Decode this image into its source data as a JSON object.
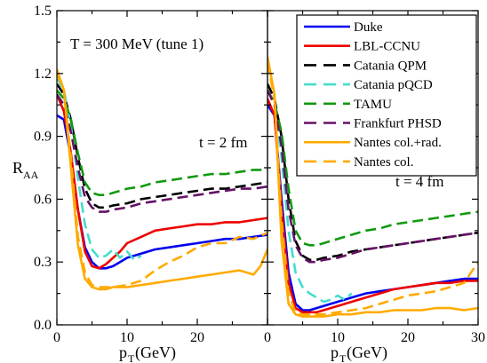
{
  "chart_data": [
    {
      "type": "line",
      "panel": "left",
      "annotations": [
        "T = 300 MeV   (tune 1)",
        "t = 2 fm"
      ],
      "ylabel_main": "R",
      "ylabel_sub": "AA",
      "xlabel_main": "p",
      "xlabel_sub": "T",
      "xlabel_unit": " (GeV)",
      "xlim": [
        0,
        30
      ],
      "ylim": [
        0.0,
        1.5
      ],
      "x_ticks": [
        "0",
        "10",
        "20"
      ],
      "y_ticks": [
        "0.0",
        "0.3",
        "0.6",
        "0.9",
        "1.2",
        "1.5"
      ],
      "series": [
        {
          "name": "Duke",
          "color": "#0000ee",
          "dash": "solid",
          "x": [
            0,
            1,
            2,
            3,
            4,
            5,
            6,
            7,
            8,
            9,
            10,
            12,
            14,
            16,
            18,
            20,
            22,
            24,
            26,
            28,
            30
          ],
          "y": [
            1.0,
            0.98,
            0.8,
            0.55,
            0.37,
            0.3,
            0.27,
            0.27,
            0.28,
            0.3,
            0.32,
            0.34,
            0.36,
            0.37,
            0.38,
            0.39,
            0.4,
            0.41,
            0.41,
            0.42,
            0.43
          ]
        },
        {
          "name": "LBL-CCNU",
          "color": "#ee0000",
          "dash": "solid",
          "x": [
            0,
            1,
            2,
            3,
            4,
            5,
            6,
            7,
            8,
            9,
            10,
            12,
            14,
            16,
            18,
            20,
            22,
            24,
            26,
            28,
            30
          ],
          "y": [
            1.1,
            1.02,
            0.82,
            0.55,
            0.35,
            0.28,
            0.27,
            0.29,
            0.32,
            0.35,
            0.39,
            0.42,
            0.45,
            0.46,
            0.47,
            0.48,
            0.48,
            0.49,
            0.49,
            0.5,
            0.51
          ]
        },
        {
          "name": "Catania QPM",
          "color": "#000000",
          "dash": "12,6",
          "x": [
            0,
            1,
            2,
            3,
            4,
            5,
            6,
            7,
            8,
            10,
            12,
            14,
            16,
            18,
            20,
            22,
            24,
            26,
            28,
            30
          ],
          "y": [
            1.15,
            1.1,
            0.98,
            0.8,
            0.65,
            0.58,
            0.56,
            0.56,
            0.57,
            0.58,
            0.6,
            0.61,
            0.62,
            0.63,
            0.64,
            0.65,
            0.65,
            0.66,
            0.67,
            0.68
          ]
        },
        {
          "name": "Catania pQCD",
          "color": "#44ddcc",
          "dash": "12,6",
          "x": [
            0,
            1,
            2,
            3,
            4,
            5,
            6,
            7,
            8,
            9,
            10,
            11,
            12
          ],
          "y": [
            1.18,
            1.12,
            0.95,
            0.7,
            0.48,
            0.36,
            0.32,
            0.33,
            0.36,
            0.32,
            0.35,
            0.31,
            0.33
          ]
        },
        {
          "name": "TAMU",
          "color": "#119911",
          "dash": "12,6",
          "x": [
            0,
            1,
            2,
            3,
            4,
            5,
            6,
            7,
            8,
            10,
            12,
            14,
            16,
            18,
            20,
            22,
            24,
            26,
            28,
            30
          ],
          "y": [
            1.12,
            1.08,
            0.98,
            0.82,
            0.68,
            0.63,
            0.62,
            0.62,
            0.63,
            0.65,
            0.66,
            0.68,
            0.69,
            0.7,
            0.71,
            0.72,
            0.72,
            0.73,
            0.74,
            0.74
          ]
        },
        {
          "name": "Frankfurt PHSD",
          "color": "#661166",
          "dash": "12,6",
          "x": [
            0,
            1,
            2,
            3,
            4,
            5,
            6,
            7,
            8,
            10,
            12,
            14,
            16,
            18,
            20,
            22,
            24,
            26,
            28,
            30
          ],
          "y": [
            1.1,
            1.05,
            0.92,
            0.75,
            0.61,
            0.56,
            0.54,
            0.54,
            0.55,
            0.56,
            0.58,
            0.59,
            0.6,
            0.61,
            0.62,
            0.63,
            0.64,
            0.65,
            0.65,
            0.66
          ]
        },
        {
          "name": "Nantes col.+rad.",
          "color": "#ffaa00",
          "dash": "solid",
          "x": [
            0,
            1,
            2,
            3,
            4,
            5,
            6,
            7,
            8,
            10,
            12,
            14,
            16,
            18,
            20,
            22,
            24,
            26,
            28,
            29,
            30
          ],
          "y": [
            1.22,
            1.12,
            0.75,
            0.38,
            0.22,
            0.18,
            0.17,
            0.17,
            0.18,
            0.18,
            0.19,
            0.2,
            0.21,
            0.22,
            0.23,
            0.24,
            0.25,
            0.26,
            0.24,
            0.28,
            0.36
          ]
        },
        {
          "name": "Nantes col.",
          "color": "#ffaa00",
          "dash": "12,6",
          "x": [
            0,
            1,
            2,
            3,
            4,
            5,
            6,
            7,
            8,
            10,
            12,
            14,
            16,
            18,
            20,
            22,
            24,
            26,
            28,
            30
          ],
          "y": [
            1.2,
            1.12,
            0.8,
            0.42,
            0.25,
            0.19,
            0.18,
            0.18,
            0.18,
            0.19,
            0.21,
            0.26,
            0.3,
            0.33,
            0.37,
            0.39,
            0.39,
            0.42,
            0.41,
            0.44
          ]
        }
      ]
    },
    {
      "type": "line",
      "panel": "right",
      "annotations": [
        "t = 4 fm"
      ],
      "xlabel_main": "p",
      "xlabel_sub": "T",
      "xlabel_unit": " (GeV)",
      "xlim": [
        0,
        30
      ],
      "ylim": [
        0.0,
        1.5
      ],
      "x_ticks": [
        "0",
        "10",
        "20",
        "30"
      ],
      "legend_position": "top-right",
      "series": [
        {
          "name": "Duke",
          "color": "#0000ee",
          "dash": "solid",
          "x": [
            0,
            1,
            2,
            3,
            4,
            5,
            6,
            7,
            8,
            10,
            12,
            14,
            16,
            18,
            20,
            22,
            24,
            26,
            28,
            30
          ],
          "y": [
            1.05,
            1.0,
            0.6,
            0.25,
            0.1,
            0.07,
            0.07,
            0.08,
            0.09,
            0.11,
            0.13,
            0.15,
            0.16,
            0.17,
            0.18,
            0.19,
            0.2,
            0.21,
            0.22,
            0.22
          ]
        },
        {
          "name": "LBL-CCNU",
          "color": "#ee0000",
          "dash": "solid",
          "x": [
            0,
            1,
            2,
            3,
            4,
            5,
            6,
            7,
            8,
            10,
            12,
            14,
            16,
            18,
            20,
            22,
            24,
            26,
            28,
            30
          ],
          "y": [
            1.08,
            1.0,
            0.55,
            0.2,
            0.08,
            0.06,
            0.06,
            0.06,
            0.07,
            0.09,
            0.11,
            0.13,
            0.15,
            0.17,
            0.18,
            0.19,
            0.2,
            0.2,
            0.21,
            0.21
          ]
        },
        {
          "name": "Catania QPM",
          "color": "#000000",
          "dash": "12,6",
          "x": [
            0,
            1,
            2,
            3,
            4,
            5,
            6,
            7,
            8,
            10,
            12,
            14,
            16,
            18,
            20,
            22,
            24,
            26,
            28,
            30
          ],
          "y": [
            1.15,
            1.08,
            0.9,
            0.6,
            0.4,
            0.33,
            0.31,
            0.31,
            0.32,
            0.33,
            0.35,
            0.36,
            0.37,
            0.38,
            0.39,
            0.4,
            0.41,
            0.42,
            0.43,
            0.44
          ]
        },
        {
          "name": "Catania pQCD",
          "color": "#44ddcc",
          "dash": "12,6",
          "x": [
            0,
            1,
            2,
            3,
            4,
            5,
            6,
            7,
            8,
            9,
            10,
            11,
            12
          ],
          "y": [
            1.12,
            1.05,
            0.8,
            0.45,
            0.25,
            0.18,
            0.15,
            0.13,
            0.11,
            0.12,
            0.14,
            0.12,
            0.15
          ]
        },
        {
          "name": "TAMU",
          "color": "#119911",
          "dash": "12,6",
          "x": [
            0,
            1,
            2,
            3,
            4,
            5,
            6,
            7,
            8,
            10,
            12,
            14,
            16,
            18,
            20,
            22,
            24,
            26,
            28,
            30
          ],
          "y": [
            1.12,
            1.06,
            0.92,
            0.65,
            0.45,
            0.39,
            0.38,
            0.38,
            0.39,
            0.41,
            0.43,
            0.45,
            0.46,
            0.48,
            0.49,
            0.5,
            0.51,
            0.52,
            0.53,
            0.54
          ]
        },
        {
          "name": "Frankfurt PHSD",
          "color": "#661166",
          "dash": "12,6",
          "x": [
            0,
            1,
            2,
            3,
            4,
            5,
            6,
            7,
            8,
            10,
            12,
            14,
            16,
            18,
            20,
            22,
            24,
            26,
            28,
            30
          ],
          "y": [
            1.12,
            1.05,
            0.85,
            0.55,
            0.38,
            0.32,
            0.3,
            0.3,
            0.31,
            0.32,
            0.34,
            0.36,
            0.37,
            0.38,
            0.39,
            0.4,
            0.41,
            0.42,
            0.43,
            0.44
          ]
        },
        {
          "name": "Nantes col.+rad.",
          "color": "#ffaa00",
          "dash": "solid",
          "x": [
            0,
            1,
            2,
            3,
            4,
            5,
            6,
            7,
            8,
            10,
            12,
            14,
            16,
            18,
            20,
            22,
            24,
            26,
            28,
            30
          ],
          "y": [
            1.28,
            1.1,
            0.4,
            0.1,
            0.05,
            0.04,
            0.04,
            0.04,
            0.04,
            0.05,
            0.05,
            0.06,
            0.06,
            0.07,
            0.07,
            0.07,
            0.08,
            0.08,
            0.07,
            0.08
          ]
        },
        {
          "name": "Nantes col.",
          "color": "#ffaa00",
          "dash": "12,6",
          "x": [
            0,
            1,
            2,
            3,
            4,
            5,
            6,
            7,
            8,
            10,
            12,
            14,
            16,
            18,
            20,
            22,
            24,
            26,
            28,
            30
          ],
          "y": [
            1.25,
            1.08,
            0.5,
            0.15,
            0.06,
            0.05,
            0.05,
            0.05,
            0.05,
            0.06,
            0.07,
            0.08,
            0.1,
            0.12,
            0.14,
            0.15,
            0.16,
            0.18,
            0.2,
            0.3
          ]
        }
      ]
    }
  ],
  "legend": {
    "position": "top-right",
    "entries": [
      "Duke",
      "LBL-CCNU",
      "Catania QPM",
      "Catania pQCD",
      "TAMU",
      "Frankfurt PHSD",
      "Nantes col.+rad.",
      "Nantes col."
    ]
  }
}
